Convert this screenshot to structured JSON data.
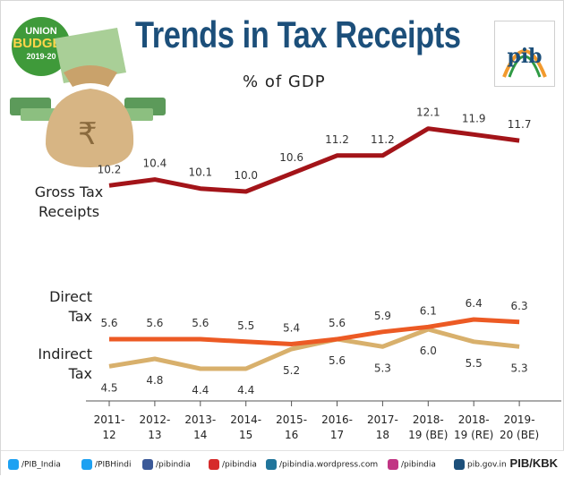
{
  "header": {
    "title": "Trends in Tax Receipts",
    "subtitle": "% of GDP",
    "badge": {
      "line1": "UNION",
      "line2": "BUDGET",
      "line3": "2019-20"
    },
    "logo_text": "pib"
  },
  "chart_data": {
    "type": "line",
    "title": "Trends in Tax Receipts",
    "subtitle": "% of GDP",
    "categories": [
      [
        "2011-",
        "12"
      ],
      [
        "2012-",
        "13"
      ],
      [
        "2013-",
        "14"
      ],
      [
        "2014-",
        "15"
      ],
      [
        "2015-",
        "16"
      ],
      [
        "2016-",
        "17"
      ],
      [
        "2017-",
        "18"
      ],
      [
        "2018-",
        "19 (BE)"
      ],
      [
        "2018-",
        "19 (RE)"
      ],
      [
        "2019-",
        "20 (BE)"
      ]
    ],
    "series": [
      {
        "name": [
          "Gross Tax",
          "Receipts"
        ],
        "values": [
          10.2,
          10.4,
          10.1,
          10.0,
          10.6,
          11.2,
          11.2,
          12.1,
          11.9,
          11.7
        ],
        "color": "#a31419",
        "label_side": "above"
      },
      {
        "name": [
          "Direct",
          "Tax"
        ],
        "values": [
          5.6,
          5.6,
          5.6,
          5.5,
          5.4,
          5.6,
          5.9,
          6.1,
          6.4,
          6.3
        ],
        "color": "#ec5a24",
        "label_side": "above"
      },
      {
        "name": [
          "Indirect",
          "Tax"
        ],
        "values": [
          4.5,
          4.8,
          4.4,
          4.4,
          5.2,
          5.6,
          5.3,
          6.0,
          5.5,
          5.3
        ],
        "color": "#d8b06c",
        "label_side": "below"
      }
    ]
  },
  "footer": {
    "items": [
      {
        "icon": "twitter-icon",
        "text": "/PIB_India",
        "color": "#1da1f2"
      },
      {
        "icon": "twitter-icon",
        "text": "/PIBHindi",
        "color": "#1da1f2"
      },
      {
        "icon": "facebook-icon",
        "text": "/pibindia",
        "color": "#3b5998"
      },
      {
        "icon": "youtube-icon",
        "text": "/pibindia",
        "color": "#d62b2b"
      },
      {
        "icon": "wordpress-icon",
        "text": "/pibindia.wordpress.com",
        "color": "#21759b"
      },
      {
        "icon": "instagram-icon",
        "text": "/pibindia",
        "color": "#c13584"
      },
      {
        "icon": "globe-icon",
        "text": "pib.gov.in",
        "color": "#1c4f7a"
      }
    ],
    "credit": "PIB/KBK"
  }
}
